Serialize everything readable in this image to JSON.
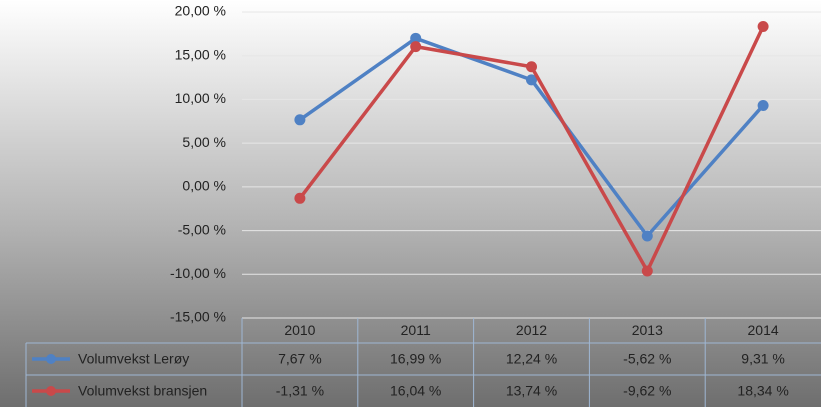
{
  "chart_data": {
    "type": "line",
    "categories": [
      "2010",
      "2011",
      "2012",
      "2013",
      "2014"
    ],
    "series": [
      {
        "name": "Volumvekst Lerøy",
        "color": "#4f81c4",
        "values": [
          7.67,
          16.99,
          12.24,
          -5.62,
          9.31
        ],
        "value_labels": [
          "7,67 %",
          "16,99 %",
          "12,24 %",
          "-5,62 %",
          "9,31 %"
        ]
      },
      {
        "name": "Volumvekst bransjen",
        "color": "#c9494a",
        "values": [
          -1.31,
          16.04,
          13.74,
          -9.62,
          18.34
        ],
        "value_labels": [
          "-1,31 %",
          "16,04 %",
          "13,74 %",
          "-9,62 %",
          "18,34 %"
        ]
      }
    ],
    "ylim": [
      -15,
      20
    ],
    "yticks": [
      {
        "value": -15,
        "label": "-15,00 %"
      },
      {
        "value": -10,
        "label": "-10,00 %"
      },
      {
        "value": -5,
        "label": "-5,00 %"
      },
      {
        "value": 0,
        "label": "0,00 %"
      },
      {
        "value": 5,
        "label": "5,00 %"
      },
      {
        "value": 10,
        "label": "10,00 %"
      },
      {
        "value": 15,
        "label": "15,00 %"
      },
      {
        "value": 20,
        "label": "20,00 %"
      }
    ],
    "grid": true
  }
}
